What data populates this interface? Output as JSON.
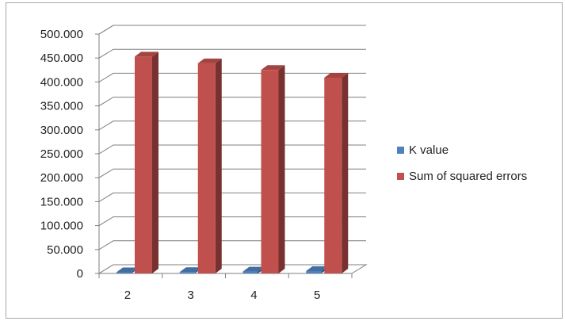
{
  "chart_data": {
    "type": "bar",
    "categories": [
      "2",
      "3",
      "4",
      "5"
    ],
    "series": [
      {
        "name": "K value",
        "values": [
          2,
          3,
          4,
          5
        ],
        "color": "#4f81bd"
      },
      {
        "name": "Sum of squared errors",
        "values": [
          453,
          439,
          425,
          409
        ],
        "color": "#c0504d"
      }
    ],
    "yticks": [
      "0",
      "50.000",
      "100.000",
      "150.000",
      "200.000",
      "250.000",
      "300.000",
      "350.000",
      "400.000",
      "450.000",
      "500.000"
    ],
    "ylim": [
      0,
      500
    ],
    "grid": true,
    "legend_position": "right",
    "style": "3d-clustered-column"
  }
}
